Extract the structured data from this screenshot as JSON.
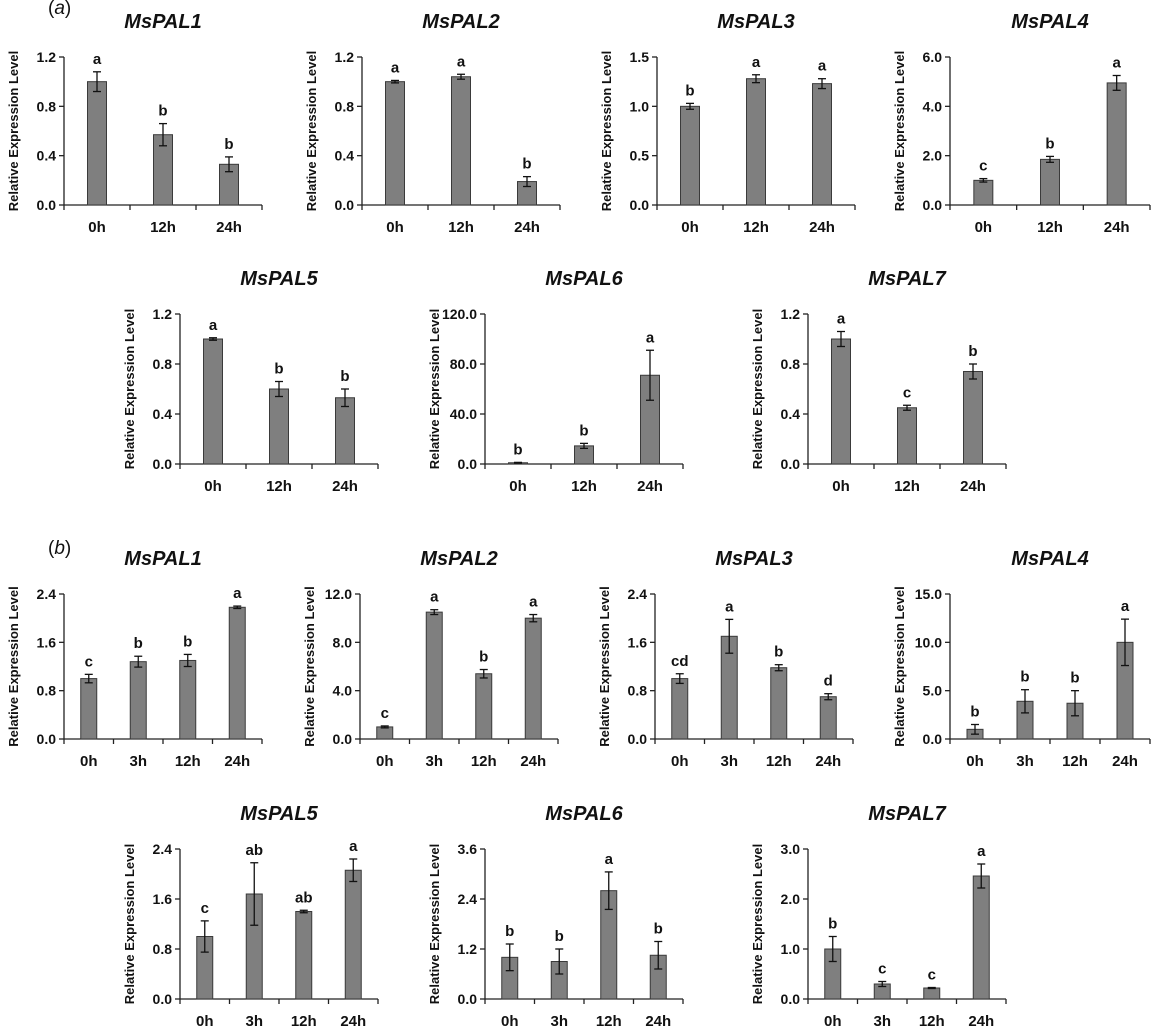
{
  "panels": [
    {
      "tag": "a"
    },
    {
      "tag": "b"
    }
  ],
  "chart_data": [
    {
      "panel": 0,
      "type": "bar",
      "title": "MsPAL1",
      "ylabel": "Relative Expression Level",
      "categories": [
        "0h",
        "12h",
        "24h"
      ],
      "values": [
        1.0,
        0.57,
        0.33
      ],
      "errors": [
        0.08,
        0.09,
        0.06
      ],
      "labels": [
        "a",
        "b",
        "b"
      ],
      "ylim": [
        0,
        1.2
      ],
      "yticks": [
        "0.0",
        "0.4",
        "0.8",
        "1.2"
      ]
    },
    {
      "panel": 0,
      "type": "bar",
      "title": "MsPAL2",
      "ylabel": "Relative Expression Level",
      "categories": [
        "0h",
        "12h",
        "24h"
      ],
      "values": [
        1.0,
        1.04,
        0.19
      ],
      "errors": [
        0.01,
        0.02,
        0.04
      ],
      "labels": [
        "a",
        "a",
        "b"
      ],
      "ylim": [
        0,
        1.2
      ],
      "yticks": [
        "0.0",
        "0.4",
        "0.8",
        "1.2"
      ]
    },
    {
      "panel": 0,
      "type": "bar",
      "title": "MsPAL3",
      "ylabel": "Relative Expression Level",
      "categories": [
        "0h",
        "12h",
        "24h"
      ],
      "values": [
        1.0,
        1.28,
        1.23
      ],
      "errors": [
        0.03,
        0.04,
        0.05
      ],
      "labels": [
        "b",
        "a",
        "a"
      ],
      "ylim": [
        0,
        1.5
      ],
      "yticks": [
        "0.0",
        "0.5",
        "1.0",
        "1.5"
      ]
    },
    {
      "panel": 0,
      "type": "bar",
      "title": "MsPAL4",
      "ylabel": "Relative Expression Level",
      "categories": [
        "0h",
        "12h",
        "24h"
      ],
      "values": [
        1.0,
        1.85,
        4.95
      ],
      "errors": [
        0.07,
        0.12,
        0.3
      ],
      "labels": [
        "c",
        "b",
        "a"
      ],
      "ylim": [
        0,
        6.0
      ],
      "yticks": [
        "0.0",
        "2.0",
        "4.0",
        "6.0"
      ]
    },
    {
      "panel": 0,
      "type": "bar",
      "title": "MsPAL5",
      "ylabel": "Relative Expression Level",
      "categories": [
        "0h",
        "12h",
        "24h"
      ],
      "values": [
        1.0,
        0.6,
        0.53
      ],
      "errors": [
        0.01,
        0.06,
        0.07
      ],
      "labels": [
        "a",
        "b",
        "b"
      ],
      "ylim": [
        0,
        1.2
      ],
      "yticks": [
        "0.0",
        "0.4",
        "0.8",
        "1.2"
      ]
    },
    {
      "panel": 0,
      "type": "bar",
      "title": "MsPAL6",
      "ylabel": "Relative Expression Level",
      "categories": [
        "0h",
        "12h",
        "24h"
      ],
      "values": [
        1.0,
        14.5,
        71.0
      ],
      "errors": [
        0.3,
        2.0,
        20.0
      ],
      "labels": [
        "b",
        "b",
        "a"
      ],
      "ylim": [
        0,
        120.0
      ],
      "yticks": [
        "0.0",
        "40.0",
        "80.0",
        "120.0"
      ]
    },
    {
      "panel": 0,
      "type": "bar",
      "title": "MsPAL7",
      "ylabel": "Relative Expression Level",
      "categories": [
        "0h",
        "12h",
        "24h"
      ],
      "values": [
        1.0,
        0.45,
        0.74
      ],
      "errors": [
        0.06,
        0.02,
        0.06
      ],
      "labels": [
        "a",
        "c",
        "b"
      ],
      "ylim": [
        0,
        1.2
      ],
      "yticks": [
        "0.0",
        "0.4",
        "0.8",
        "1.2"
      ]
    },
    {
      "panel": 1,
      "type": "bar",
      "title": "MsPAL1",
      "ylabel": "Relative Expression Level",
      "categories": [
        "0h",
        "3h",
        "12h",
        "24h"
      ],
      "values": [
        1.0,
        1.28,
        1.3,
        2.18
      ],
      "errors": [
        0.07,
        0.09,
        0.1,
        0.02
      ],
      "labels": [
        "c",
        "b",
        "b",
        "a"
      ],
      "ylim": [
        0,
        2.4
      ],
      "yticks": [
        "0.0",
        "0.8",
        "1.6",
        "2.4"
      ]
    },
    {
      "panel": 1,
      "type": "bar",
      "title": "MsPAL2",
      "ylabel": "Relative Expression Level",
      "categories": [
        "0h",
        "3h",
        "12h",
        "24h"
      ],
      "values": [
        1.0,
        10.5,
        5.4,
        10.0
      ],
      "errors": [
        0.08,
        0.2,
        0.35,
        0.3
      ],
      "labels": [
        "c",
        "a",
        "b",
        "a"
      ],
      "ylim": [
        0,
        12.0
      ],
      "yticks": [
        "0.0",
        "4.0",
        "8.0",
        "12.0"
      ]
    },
    {
      "panel": 1,
      "type": "bar",
      "title": "MsPAL3",
      "ylabel": "Relative Expression Level",
      "categories": [
        "0h",
        "3h",
        "12h",
        "24h"
      ],
      "values": [
        1.0,
        1.7,
        1.18,
        0.7
      ],
      "errors": [
        0.08,
        0.28,
        0.05,
        0.05
      ],
      "labels": [
        "cd",
        "a",
        "b",
        "d"
      ],
      "ylim": [
        0,
        2.4
      ],
      "yticks": [
        "0.0",
        "0.8",
        "1.6",
        "2.4"
      ]
    },
    {
      "panel": 1,
      "type": "bar",
      "title": "MsPAL4",
      "ylabel": "Relative Expression Level",
      "categories": [
        "0h",
        "3h",
        "12h",
        "24h"
      ],
      "values": [
        1.0,
        3.9,
        3.7,
        10.0
      ],
      "errors": [
        0.5,
        1.2,
        1.3,
        2.4
      ],
      "labels": [
        "b",
        "b",
        "b",
        "a"
      ],
      "ylim": [
        0,
        15.0
      ],
      "yticks": [
        "0.0",
        "5.0",
        "10.0",
        "15.0"
      ]
    },
    {
      "panel": 1,
      "type": "bar",
      "title": "MsPAL5",
      "ylabel": "Relative Expression Level",
      "categories": [
        "0h",
        "3h",
        "12h",
        "24h"
      ],
      "values": [
        1.0,
        1.68,
        1.4,
        2.06
      ],
      "errors": [
        0.25,
        0.5,
        0.02,
        0.18
      ],
      "labels": [
        "c",
        "ab",
        "ab",
        "a"
      ],
      "ylim": [
        0,
        2.4
      ],
      "yticks": [
        "0.0",
        "0.8",
        "1.6",
        "2.4"
      ]
    },
    {
      "panel": 1,
      "type": "bar",
      "title": "MsPAL6",
      "ylabel": "Relative Expression Level",
      "categories": [
        "0h",
        "3h",
        "12h",
        "24h"
      ],
      "values": [
        1.0,
        0.9,
        2.6,
        1.05
      ],
      "errors": [
        0.32,
        0.3,
        0.45,
        0.33
      ],
      "labels": [
        "b",
        "b",
        "a",
        "b"
      ],
      "ylim": [
        0,
        3.6
      ],
      "yticks": [
        "0.0",
        "1.2",
        "2.4",
        "3.6"
      ]
    },
    {
      "panel": 1,
      "type": "bar",
      "title": "MsPAL7",
      "ylabel": "Relative Expression Level",
      "categories": [
        "0h",
        "3h",
        "12h",
        "24h"
      ],
      "values": [
        1.0,
        0.3,
        0.22,
        2.46
      ],
      "errors": [
        0.25,
        0.05,
        0.01,
        0.24
      ],
      "labels": [
        "b",
        "c",
        "c",
        "a"
      ],
      "ylim": [
        0,
        3.0
      ],
      "yticks": [
        "0.0",
        "1.0",
        "2.0",
        "3.0"
      ]
    }
  ]
}
